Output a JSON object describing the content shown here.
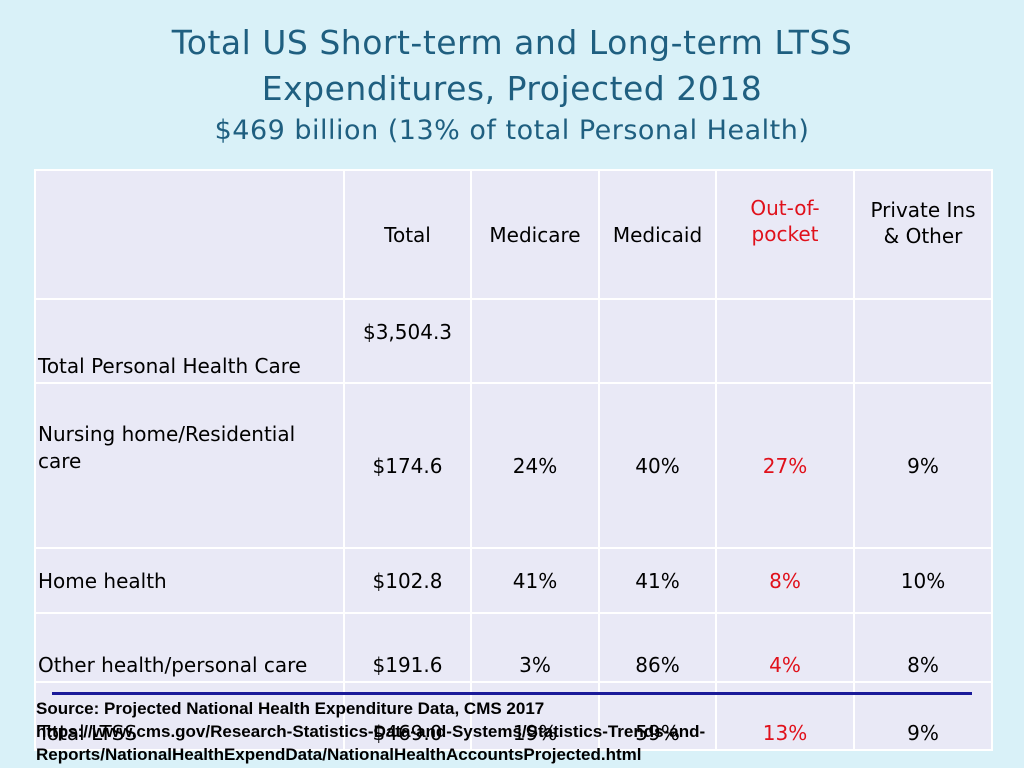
{
  "title": {
    "line1": "Total US Short-term and Long-term LTSS",
    "line2": "Expenditures, Projected 2018",
    "subtitle": "$469 billion (13% of total Personal Health)"
  },
  "table": {
    "headers": {
      "total": "Total",
      "medicare": "Medicare",
      "medicaid": "Medicaid",
      "oop_line1": "Out-of-",
      "oop_line2": "pocket",
      "priv_line1": "Private Ins",
      "priv_line2": "& Other"
    },
    "rows": [
      {
        "label": "Total Personal Health Care",
        "total": "$3,504.3",
        "medicare": "",
        "medicaid": "",
        "oop": "",
        "private": ""
      },
      {
        "label": "Nursing home/Residential care",
        "total": "$174.6",
        "medicare": "24%",
        "medicaid": "40%",
        "oop": "27%",
        "private": "9%"
      },
      {
        "label": "Home health",
        "total": "$102.8",
        "medicare": "41%",
        "medicaid": "41%",
        "oop": "8%",
        "private": "10%"
      },
      {
        "label": "Other health/personal care",
        "total": "$191.6",
        "medicare": "3%",
        "medicaid": "86%",
        "oop": "4%",
        "private": "8%"
      },
      {
        "label": "Total LTSS",
        "total": "$469.0",
        "medicare": "19%",
        "medicaid": "59%",
        "oop": "13%",
        "private": "9%"
      }
    ]
  },
  "source": {
    "line1": "Source: Projected National Health Expenditure Data, CMS 2017",
    "line2": "https://www.cms.gov/Research-Statistics-Data-and-Systems/Statistics-Trends-and-",
    "line3": "Reports/NationalHealthExpendData/NationalHealthAccountsProjected.html"
  },
  "colors": {
    "background": "#d9f1f8",
    "title": "#1f5f80",
    "out_of_pocket": "#e0111b",
    "rule": "#1a1a99"
  }
}
